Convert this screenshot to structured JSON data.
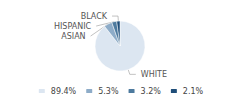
{
  "chart_data": {
    "type": "pie",
    "categories": [
      "WHITE",
      "ASIAN",
      "HISPANIC",
      "BLACK"
    ],
    "values": [
      89.4,
      5.3,
      3.2,
      2.1
    ],
    "value_labels": [
      "89.4%",
      "5.3%",
      "3.2%",
      "2.1%"
    ],
    "colors": [
      "#dce6f1",
      "#8eacc8",
      "#4d7a9e",
      "#1f4e79"
    ],
    "legend": "bottom"
  }
}
